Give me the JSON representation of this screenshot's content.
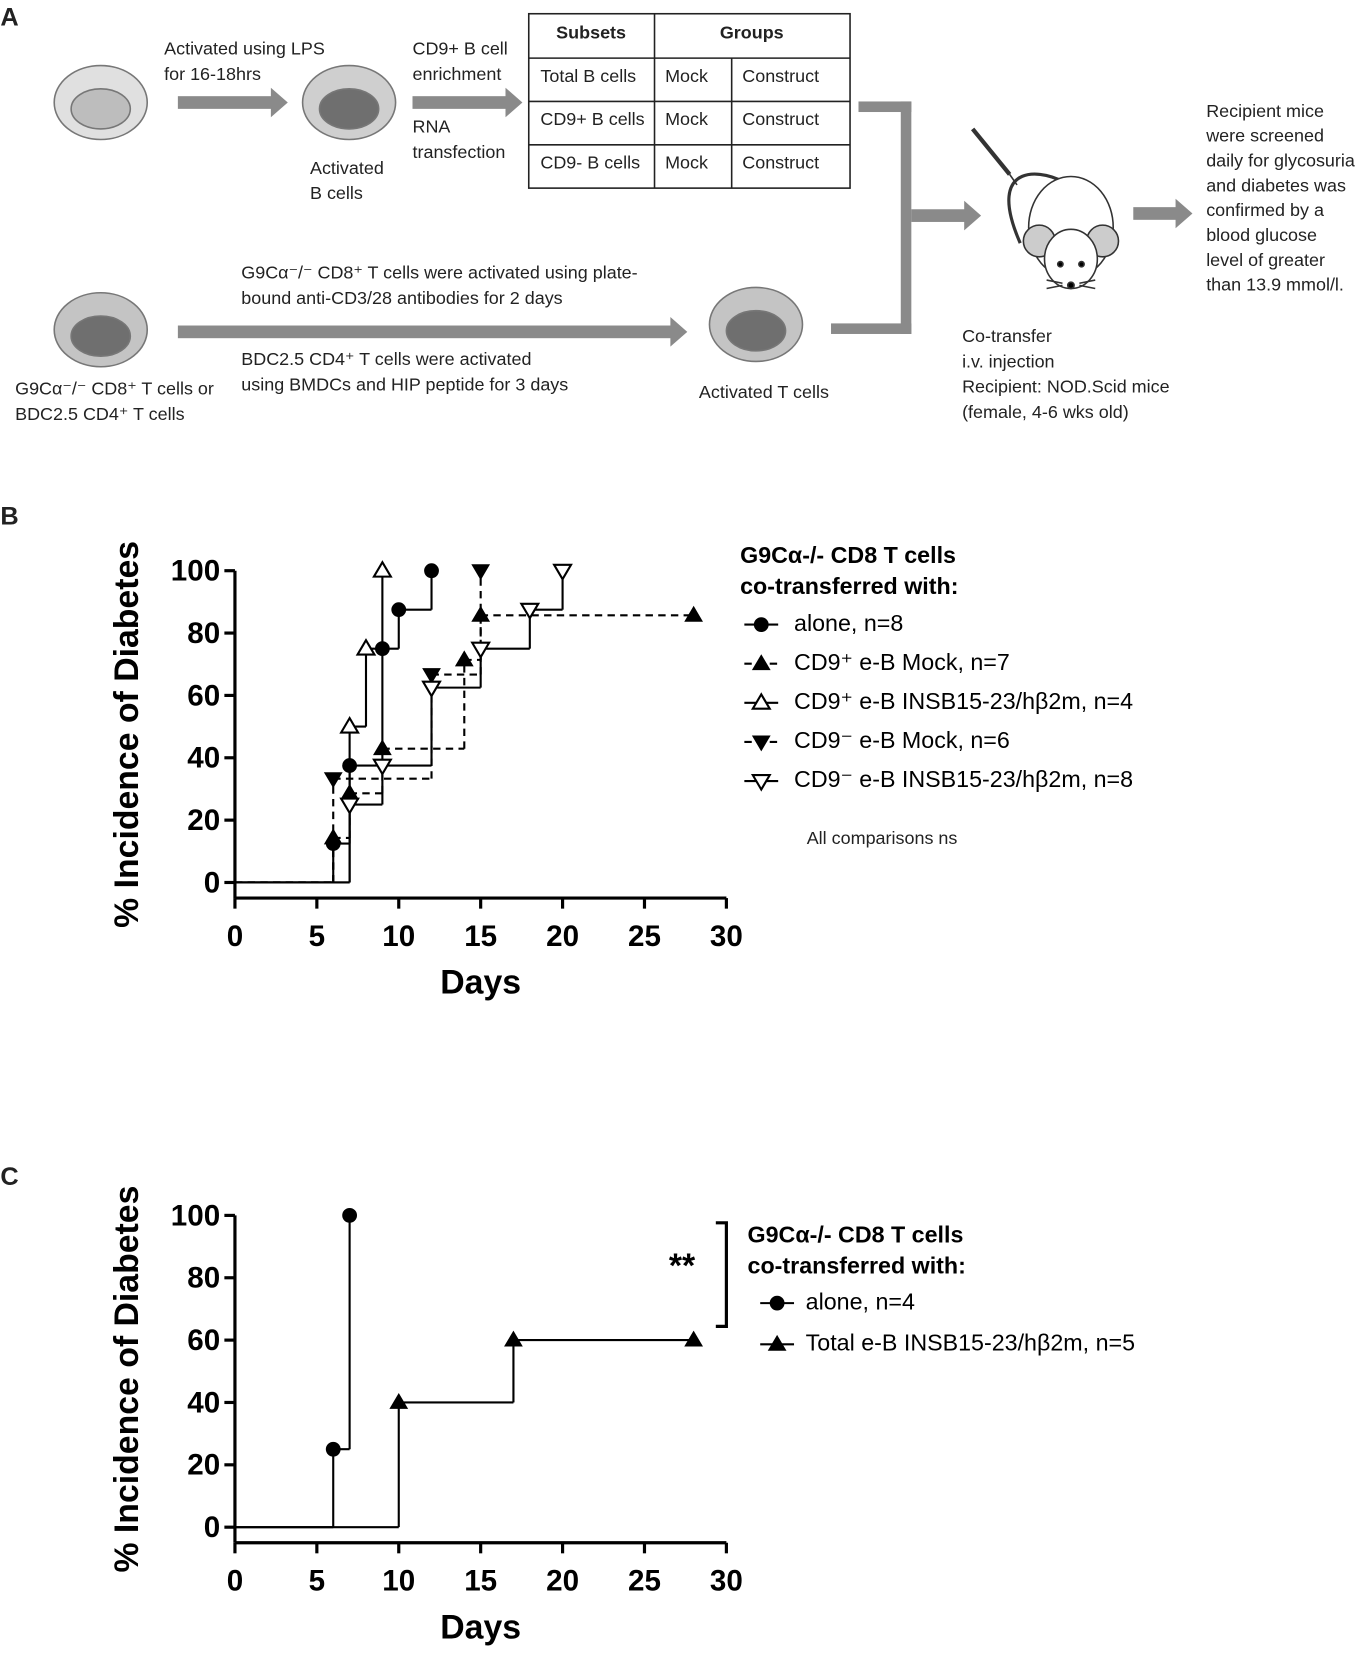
{
  "diagram": {
    "label": "A",
    "lps": [
      "Activated using LPS",
      "for 16-18hrs"
    ],
    "enrich": [
      "CD9+ B cell",
      "enrichment"
    ],
    "rna": [
      "RNA",
      "transfection"
    ],
    "activated_b": [
      "Activated",
      "B cells"
    ],
    "table": {
      "header": [
        "Subsets",
        "Groups"
      ],
      "rows": [
        [
          "Total B cells",
          "Mock",
          "Construct"
        ],
        [
          "CD9+ B cells",
          "Mock",
          "Construct"
        ],
        [
          "CD9- B cells",
          "Mock",
          "Construct"
        ]
      ]
    },
    "cd8_act": [
      "G9Cα⁻/⁻ CD8⁺ T cells were activated using plate-",
      "bound anti-CD3/28 antibodies for 2 days"
    ],
    "cd4_act": [
      "BDC2.5 CD4⁺ T cells  were activated",
      "using BMDCs and HIP peptide for 3 days"
    ],
    "t_source": [
      "G9Cα⁻/⁻ CD8⁺ T cells or",
      "BDC2.5 CD4⁺ T cells"
    ],
    "activated_t": "Activated T cells",
    "transfer": [
      "Co-transfer",
      "i.v. injection",
      "Recipient: NOD.Scid mice",
      "(female, 4-6 wks old)"
    ],
    "screen": [
      "Recipient mice",
      "were screened",
      "daily for glycosuria",
      "and diabetes was",
      "confirmed by a",
      "blood glucose",
      "level of greater",
      "than 13.9 mmol/l."
    ]
  },
  "chart_data": [
    {
      "type": "step",
      "panel": "B",
      "y_label": "% Incidence of Diabetes",
      "x_label": "Days",
      "xlim": [
        0,
        30
      ],
      "ylim": [
        -5,
        100
      ],
      "xticks": [
        0,
        5,
        10,
        15,
        20,
        25,
        30
      ],
      "yticks": [
        0,
        20,
        40,
        60,
        80,
        100
      ],
      "legend_title": [
        "G9Cα-/- CD8 T cells",
        "co-transferred with:"
      ],
      "annotation": "All comparisons ns",
      "series": [
        {
          "name": "alone, n=8",
          "color": "#000000",
          "dashed": false,
          "marker": "circle",
          "x": [
            6,
            7,
            9,
            10,
            12
          ],
          "values": [
            12.5,
            37.5,
            75,
            87.5,
            100
          ]
        },
        {
          "name": "CD9⁺ e-B Mock, n=7",
          "color": "#000000",
          "dashed": true,
          "marker": "triangle-up",
          "x": [
            6,
            7,
            9,
            14,
            15,
            28
          ],
          "values": [
            14.3,
            28.6,
            42.9,
            71.4,
            85.7,
            85.7
          ]
        },
        {
          "name": "CD9⁺ e-B INSB15-23/hβ2m, n=4",
          "color": "#000000",
          "dashed": false,
          "marker": "triangle-up-open",
          "x": [
            7,
            8,
            9
          ],
          "values": [
            50,
            75,
            100
          ]
        },
        {
          "name": "CD9⁻ e-B Mock, n=6",
          "color": "#000000",
          "dashed": true,
          "marker": "triangle-down",
          "x": [
            6,
            12,
            15
          ],
          "values": [
            33.3,
            66.7,
            100
          ]
        },
        {
          "name": "CD9⁻ e-B INSB15-23/hβ2m, n=8",
          "color": "#000000",
          "dashed": false,
          "marker": "triangle-down-open",
          "x": [
            7,
            9,
            12,
            15,
            18,
            20
          ],
          "values": [
            25,
            37.5,
            62.5,
            75,
            87.5,
            100
          ]
        }
      ]
    },
    {
      "type": "step",
      "panel": "C",
      "y_label": "% Incidence of Diabetes",
      "x_label": "Days",
      "xlim": [
        0,
        30
      ],
      "ylim": [
        -5,
        100
      ],
      "xticks": [
        0,
        5,
        10,
        15,
        20,
        25,
        30
      ],
      "yticks": [
        0,
        20,
        40,
        60,
        80,
        100
      ],
      "legend_title": [
        "G9Cα-/- CD8 T cells",
        "co-transferred with:"
      ],
      "annotation": "**",
      "series": [
        {
          "name": "alone, n=4",
          "color": "#000000",
          "dashed": false,
          "marker": "circle",
          "x": [
            6,
            7
          ],
          "values": [
            25,
            100
          ]
        },
        {
          "name": "Total e-B INSB15-23/hβ2m, n=5",
          "color": "#000000",
          "dashed": false,
          "marker": "triangle-up",
          "x": [
            10,
            17,
            28
          ],
          "values": [
            40,
            60,
            60
          ]
        }
      ]
    }
  ]
}
